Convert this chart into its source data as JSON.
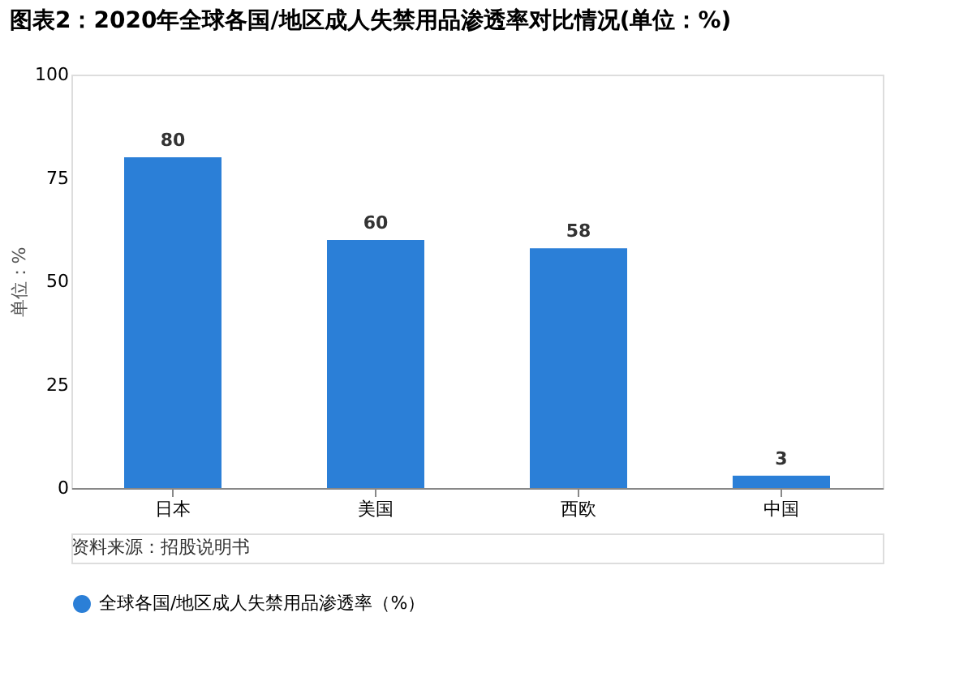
{
  "chart_data": {
    "type": "bar",
    "title": "图表2：2020年全球各国/地区成人失禁用品渗透率对比情况(单位：%)",
    "ylabel": "单位：%",
    "categories": [
      "日本",
      "美国",
      "西欧",
      "中国"
    ],
    "series": [
      {
        "name": "全球各国/地区成人失禁用品渗透率（%）",
        "color": "#2b7fd7",
        "values": [
          80,
          60,
          58,
          3
        ]
      }
    ],
    "ylim": [
      0,
      100
    ],
    "yticks": [
      0,
      25,
      50,
      75,
      100
    ],
    "grid": false,
    "legend": "bottom",
    "data_labels": true,
    "annotations": [
      "资料来源：招股说明书"
    ]
  }
}
